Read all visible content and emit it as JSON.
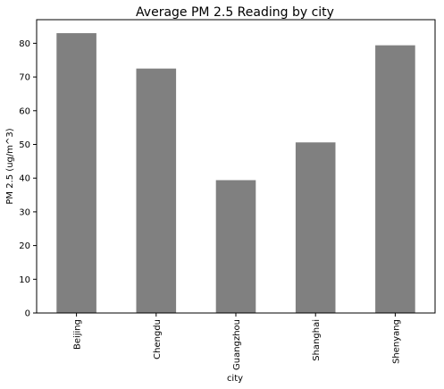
{
  "chart_data": {
    "type": "bar",
    "title": "Average PM 2.5 Reading by city",
    "xlabel": "city",
    "ylabel": "PM 2.5 (ug/m^3)",
    "categories": [
      "Beijing",
      "Chengdu",
      "Guangzhou",
      "Shanghai",
      "Shenyang"
    ],
    "values": [
      83.0,
      72.5,
      39.4,
      50.6,
      79.4
    ],
    "ylim": [
      0,
      87
    ],
    "yticks": [
      0,
      10,
      20,
      30,
      40,
      50,
      60,
      70,
      80
    ],
    "bar_color": "#808080",
    "grid": false,
    "legend": "none"
  }
}
